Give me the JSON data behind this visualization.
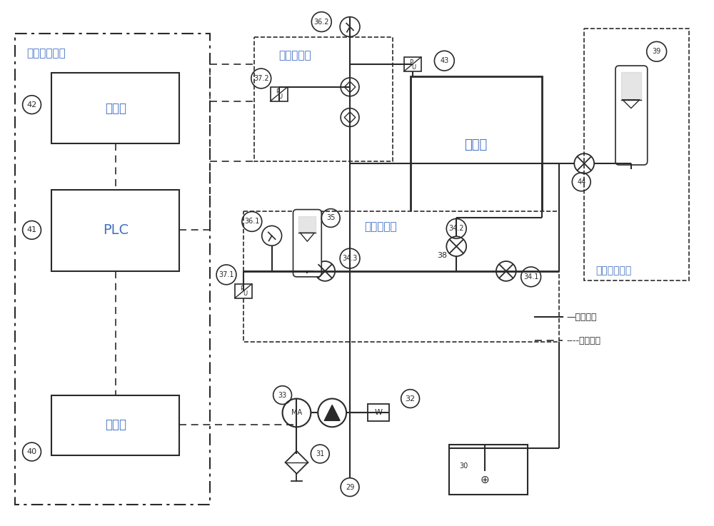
{
  "bg_color": "#ffffff",
  "lc": "#2a2a2a",
  "dc": "#2a2a2a",
  "label_blue": "#4472c4",
  "legend_solid": "水路连接",
  "legend_dash": "电气连接",
  "shuiya_ctrl": "水压控制装置",
  "touchscreen": "触摸屏",
  "plc": "PLC",
  "bipin": "变频器",
  "yalitong": "压力筒",
  "ylby": "压力补偿装置",
  "diyi_valve": "第一水阀块",
  "dier_valve": "第二水阀块"
}
